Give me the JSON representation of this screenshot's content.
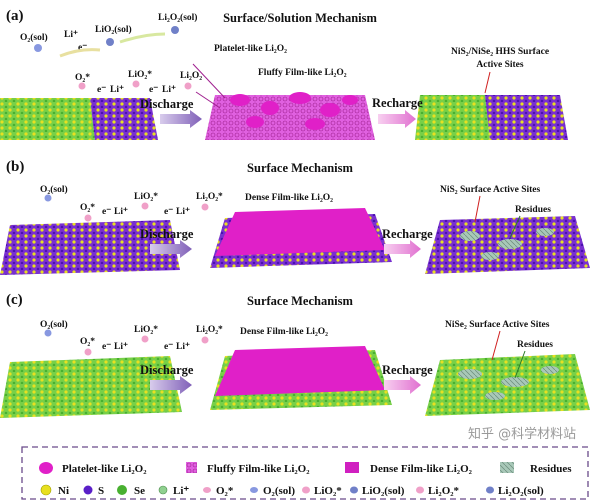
{
  "colors": {
    "ni": "#e8e020",
    "s": "#5a1fc8",
    "se": "#5cc83a",
    "li2o2": "#e020c8",
    "arrow_discharge": "#9a80c8",
    "arrow_recharge": "#e890d8",
    "legend_border": "#6a4a8a"
  },
  "panels": [
    {
      "label": "(a)",
      "title": "Surface/Solution Mechanism",
      "species": {
        "o2sol": "O₂(sol)",
        "li1": "Li⁺",
        "e1": "e⁻",
        "lio2sol": "LiO₂(sol)",
        "li2o2sol": "Li₂O₂(sol)",
        "o2star": "O₂*",
        "e2": "e⁻",
        "li2": "Li⁺",
        "lio2star": "LiO₂*",
        "e3": "e⁻",
        "li3": "Li⁺",
        "li2o2": "Li₂O₂"
      },
      "product1": "Platelet-like Li₂O₂",
      "product2": "Fluffy Film-like Li₂O₂",
      "discharge": "Discharge",
      "recharge": "Recharge",
      "sites_line1": "NiS₂/NiSe₂ HHS Surface",
      "sites_line2": "Active Sites"
    },
    {
      "label": "(b)",
      "title": "Surface Mechanism",
      "species": {
        "o2sol": "O₂(sol)",
        "o2star": "O₂*",
        "e1": "e⁻",
        "li1": "Li⁺",
        "lio2star": "LiO₂*",
        "e2": "e⁻",
        "li2": "Li⁺",
        "li2o2star": "Li₂O₂*"
      },
      "product": "Dense Film-like Li₂O₂",
      "discharge": "Discharge",
      "recharge": "Recharge",
      "sites": "NiS₂ Surface Active Sites",
      "residues": "Residues"
    },
    {
      "label": "(c)",
      "title": "Surface Mechanism",
      "species": {
        "o2sol": "O₂(sol)",
        "o2star": "O₂*",
        "e1": "e⁻",
        "li1": "Li⁺",
        "lio2star": "LiO₂*",
        "e2": "e⁻",
        "li2": "Li⁺",
        "li2o2star": "Li₂O₂*"
      },
      "product": "Dense Film-like Li₂O₂",
      "discharge": "Discharge",
      "recharge": "Recharge",
      "sites": "NiSe₂ Surface Active Sites",
      "residues": "Residues"
    }
  ],
  "legend": {
    "row1": [
      "Platelet-like Li₂O₂",
      "Fluffy Film-like Li₂O₂",
      "Dense Film-like Li₂O₂",
      "Residues"
    ],
    "row2": [
      "Ni",
      "S",
      "Se",
      "Li⁺",
      "O₂*",
      "O₂(sol)",
      "LiO₂*",
      "LiO₂(sol)",
      "Li₂O₂*",
      "Li₂O₂(sol)"
    ]
  },
  "watermark": "知乎 @科学材料站"
}
